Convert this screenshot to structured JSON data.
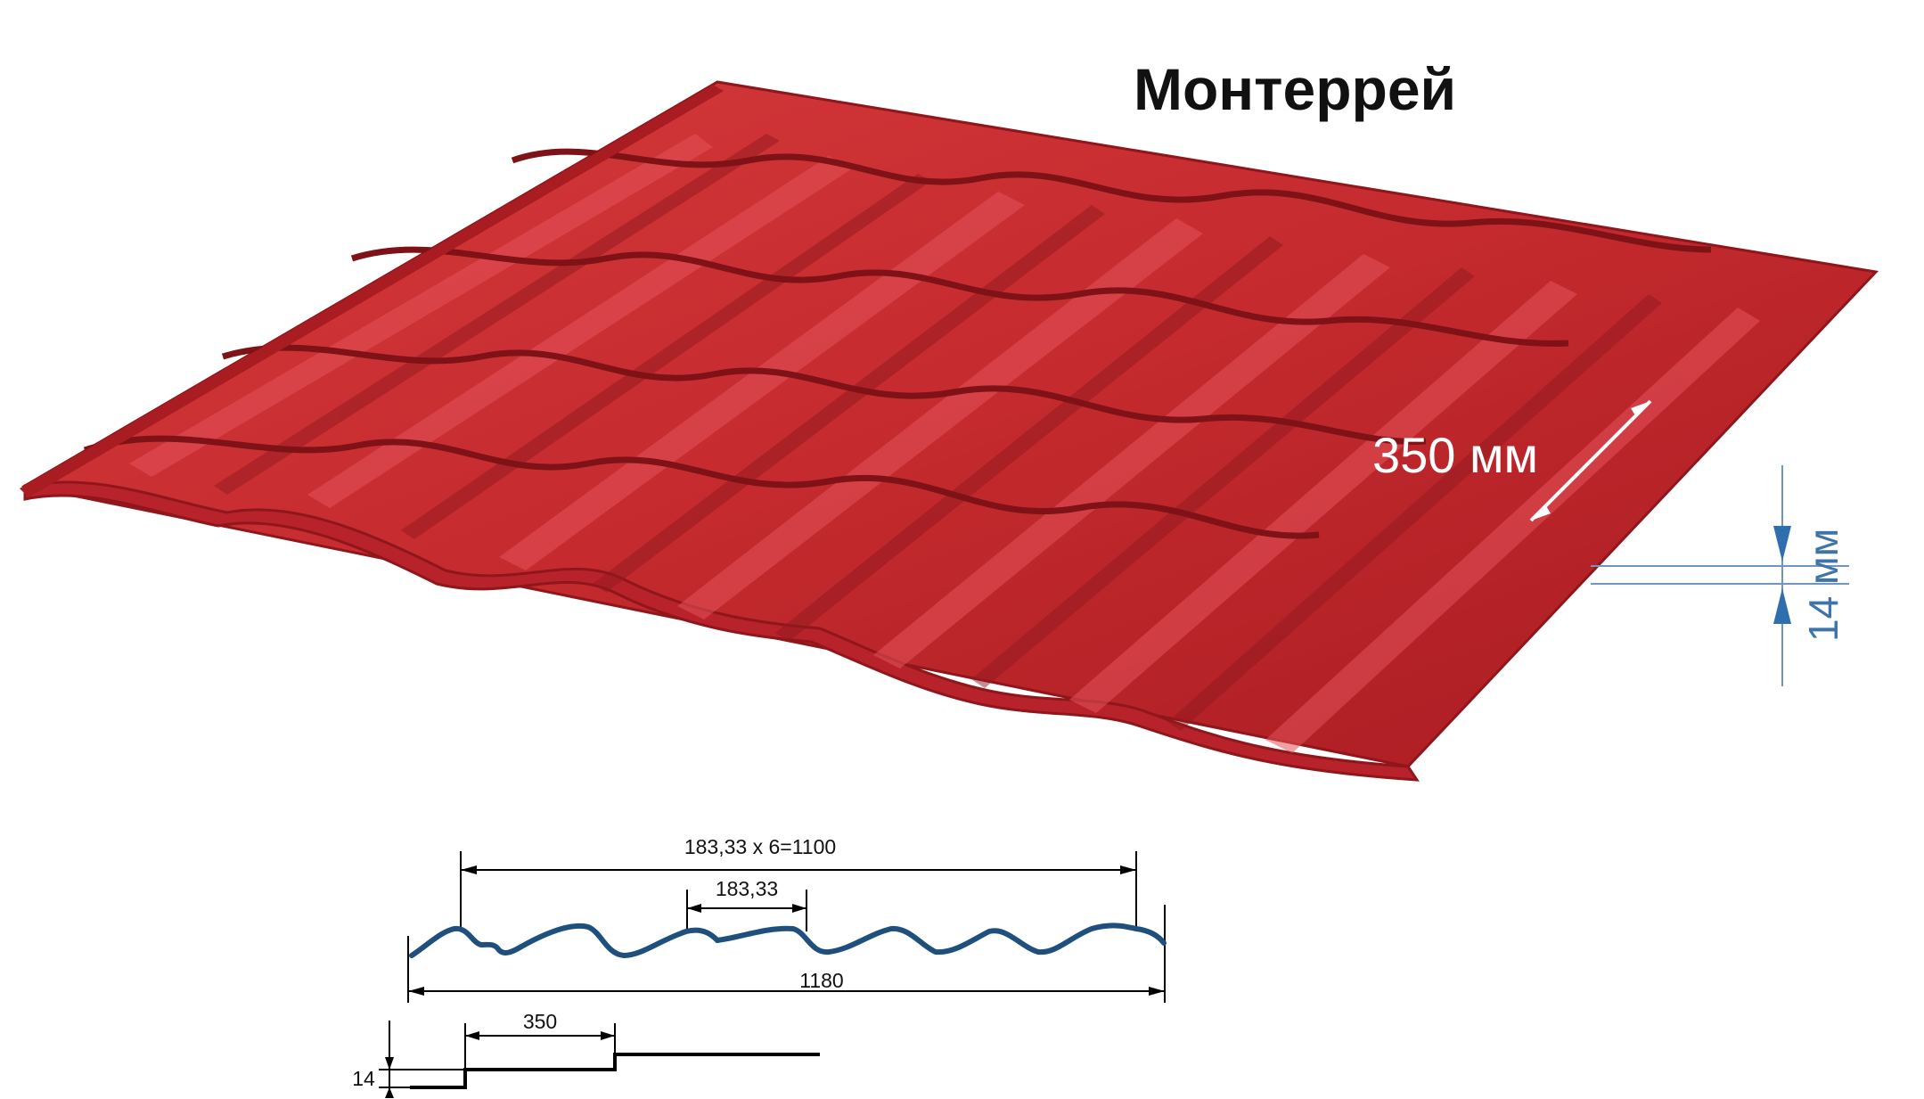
{
  "title": "Монтеррей",
  "sheet": {
    "color": "#c6262d",
    "wave_label": "350 мм",
    "height_label": "14 мм"
  },
  "drawing": {
    "profile_color": "#1f4f7d",
    "pitch_total_label": "183,33 х 6=1100",
    "pitch_label": "183,33",
    "width_label": "1180",
    "step_label": "350",
    "step_height_label": "14"
  }
}
